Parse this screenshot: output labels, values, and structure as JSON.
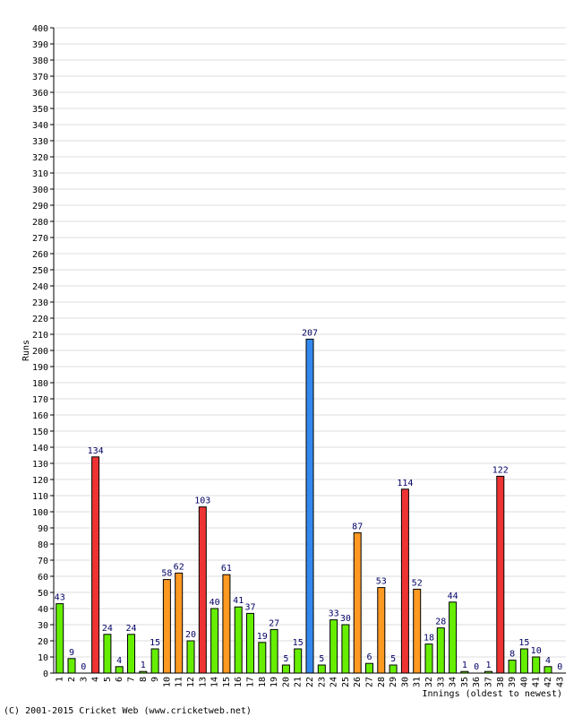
{
  "chart_data": {
    "type": "bar",
    "title": "",
    "ylabel": "Runs",
    "xlabel": "Innings (oldest to newest)",
    "ylim": [
      0,
      400
    ],
    "ytick_step": 10,
    "grid": true,
    "categories": [
      "1",
      "2",
      "3",
      "4",
      "5",
      "6",
      "7",
      "8",
      "9",
      "10",
      "11",
      "12",
      "13",
      "14",
      "15",
      "16",
      "17",
      "18",
      "19",
      "20",
      "21",
      "22",
      "23",
      "24",
      "25",
      "26",
      "27",
      "28",
      "29",
      "30",
      "31",
      "32",
      "33",
      "34",
      "35",
      "36",
      "37",
      "38",
      "39",
      "40",
      "41",
      "42",
      "43"
    ],
    "values": [
      43,
      9,
      0,
      134,
      24,
      4,
      24,
      1,
      15,
      58,
      62,
      20,
      103,
      40,
      61,
      41,
      37,
      19,
      27,
      5,
      15,
      207,
      5,
      33,
      30,
      87,
      6,
      53,
      5,
      114,
      52,
      18,
      28,
      44,
      1,
      0,
      1,
      122,
      8,
      15,
      10,
      4,
      0
    ],
    "bar_colors": [
      "#66ee00",
      "#66ee00",
      "#66ee00",
      "#ee3333",
      "#66ee00",
      "#66ee00",
      "#66ee00",
      "#66ee00",
      "#66ee00",
      "#ff9922",
      "#ff9922",
      "#66ee00",
      "#ee3333",
      "#66ee00",
      "#ff9922",
      "#66ee00",
      "#66ee00",
      "#66ee00",
      "#66ee00",
      "#66ee00",
      "#66ee00",
      "#3388ee",
      "#66ee00",
      "#66ee00",
      "#66ee00",
      "#ff9922",
      "#66ee00",
      "#ff9922",
      "#66ee00",
      "#ee3333",
      "#ff9922",
      "#66ee00",
      "#66ee00",
      "#66ee00",
      "#66ee00",
      "#66ee00",
      "#66ee00",
      "#ee3333",
      "#66ee00",
      "#66ee00",
      "#66ee00",
      "#66ee00",
      "#66ee00"
    ],
    "label_color": "#000066",
    "grid_color": "#dddddd",
    "axis_color": "#000000"
  },
  "footer": {
    "copyright": "(C) 2001-2015 Cricket Web (www.cricketweb.net)"
  }
}
